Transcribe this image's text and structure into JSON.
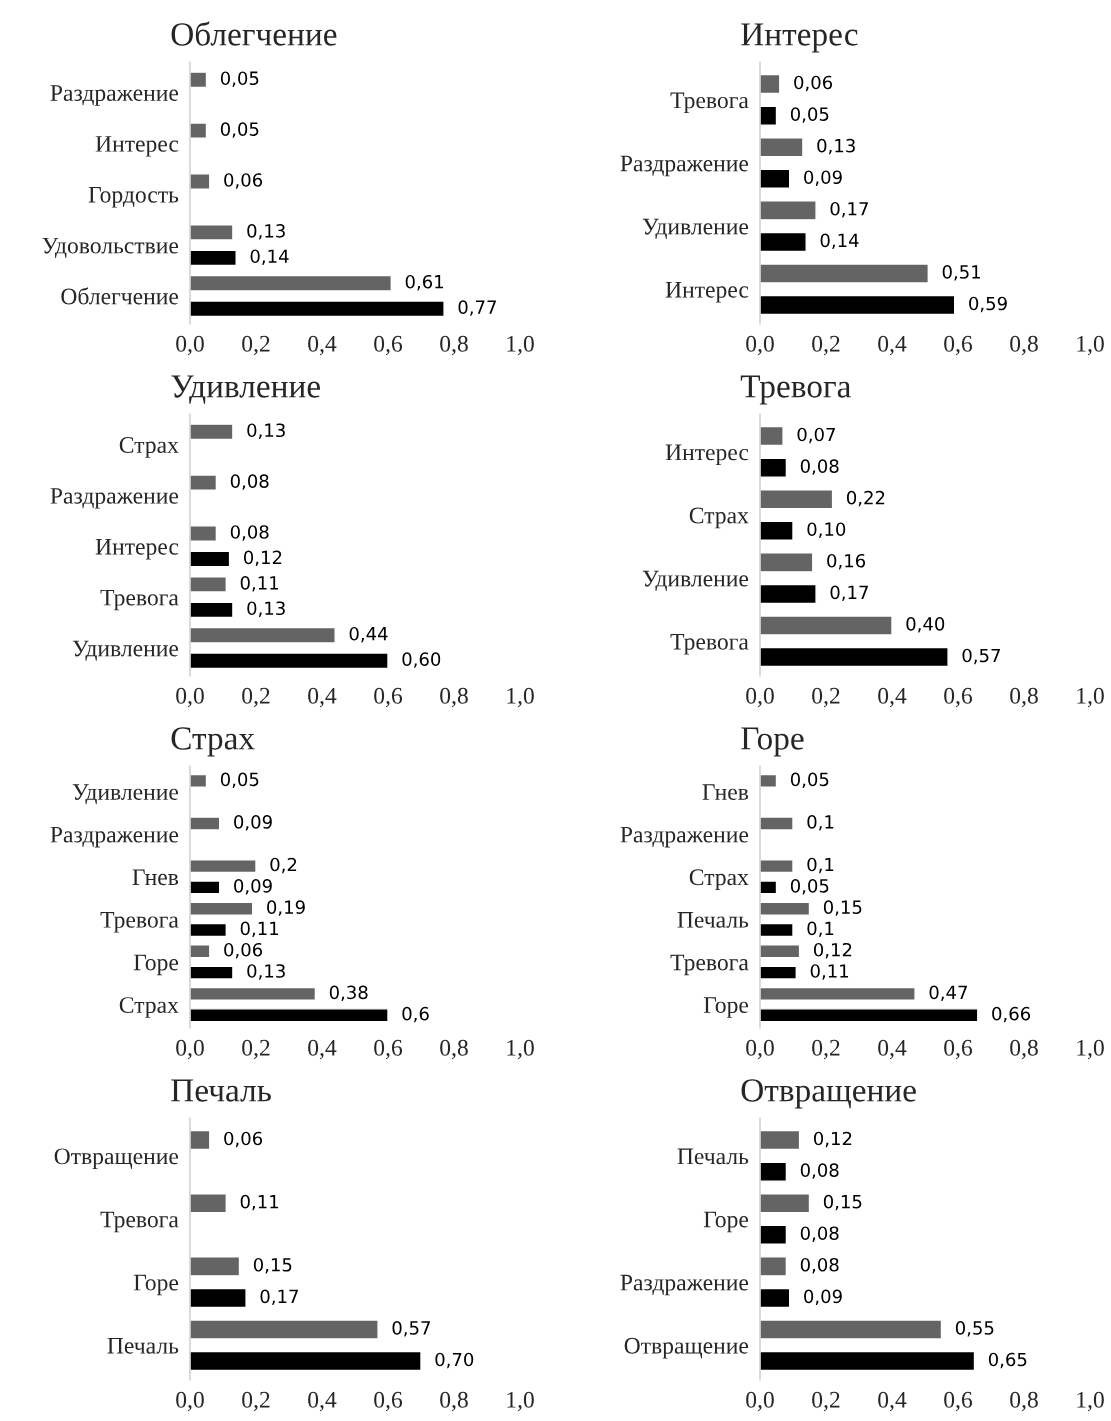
{
  "chart_data": [
    {
      "type": "bar",
      "orientation": "horizontal",
      "title": "Облегчение",
      "categories": [
        "Раздражение",
        "Интерес",
        "Гордость",
        "Удовольствие",
        "Облегчение"
      ],
      "series": [
        {
          "color": "#646464",
          "values": [
            0.05,
            0.05,
            0.06,
            0.13,
            0.61
          ],
          "value_labels": [
            "0,05",
            "0,05",
            "0,06",
            "0,13",
            "0,61"
          ]
        },
        {
          "color": "#000000",
          "values": [
            null,
            null,
            null,
            0.14,
            0.77
          ],
          "value_labels": [
            null,
            null,
            null,
            "0,14",
            "0,77"
          ]
        }
      ],
      "xlim": [
        0,
        1.0
      ],
      "xticks": [
        {
          "value": 0,
          "label": "0,0"
        },
        {
          "value": 0.2,
          "label": "0,2"
        },
        {
          "value": 0.4,
          "label": "0,4"
        },
        {
          "value": 0.6,
          "label": "0,6"
        },
        {
          "value": 0.8,
          "label": "0,8"
        },
        {
          "value": 1.0,
          "label": "1,0"
        }
      ],
      "grid": false
    },
    {
      "type": "bar",
      "orientation": "horizontal",
      "title": "Интерес",
      "categories": [
        "Тревога",
        "Раздражение",
        "Удивление",
        "Интерес"
      ],
      "series": [
        {
          "color": "#646464",
          "values": [
            0.06,
            0.13,
            0.17,
            0.51
          ],
          "value_labels": [
            "0,06",
            "0,13",
            "0,17",
            "0,51"
          ]
        },
        {
          "color": "#000000",
          "values": [
            0.05,
            0.09,
            0.14,
            0.59
          ],
          "value_labels": [
            "0,05",
            "0,09",
            "0,14",
            "0,59"
          ]
        }
      ],
      "xlim": [
        0,
        1.0
      ],
      "xticks": [
        {
          "value": 0,
          "label": "0,0"
        },
        {
          "value": 0.2,
          "label": "0,2"
        },
        {
          "value": 0.4,
          "label": "0,4"
        },
        {
          "value": 0.6,
          "label": "0,6"
        },
        {
          "value": 0.8,
          "label": "0,8"
        },
        {
          "value": 1.0,
          "label": "1,0"
        }
      ],
      "grid": false
    },
    {
      "type": "bar",
      "orientation": "horizontal",
      "title": "Удивление",
      "categories": [
        "Страх",
        "Раздражение",
        "Интерес",
        "Тревога",
        "Удивление"
      ],
      "series": [
        {
          "color": "#646464",
          "values": [
            0.13,
            0.08,
            0.08,
            0.11,
            0.44
          ],
          "value_labels": [
            "0,13",
            "0,08",
            "0,08",
            "0,11",
            "0,44"
          ]
        },
        {
          "color": "#000000",
          "values": [
            null,
            null,
            0.12,
            0.13,
            0.6
          ],
          "value_labels": [
            null,
            null,
            "0,12",
            "0,13",
            "0,60"
          ]
        }
      ],
      "xlim": [
        0,
        1.0
      ],
      "xticks": [
        {
          "value": 0,
          "label": "0,0"
        },
        {
          "value": 0.2,
          "label": "0,2"
        },
        {
          "value": 0.4,
          "label": "0,4"
        },
        {
          "value": 0.6,
          "label": "0,6"
        },
        {
          "value": 0.8,
          "label": "0,8"
        },
        {
          "value": 1.0,
          "label": "1,0"
        }
      ],
      "grid": false
    },
    {
      "type": "bar",
      "orientation": "horizontal",
      "title": "Тревога",
      "categories": [
        "Интерес",
        "Страх",
        "Удивление",
        "Тревога"
      ],
      "series": [
        {
          "color": "#646464",
          "values": [
            0.07,
            0.22,
            0.16,
            0.4
          ],
          "value_labels": [
            "0,07",
            "0,22",
            "0,16",
            "0,40"
          ]
        },
        {
          "color": "#000000",
          "values": [
            0.08,
            0.1,
            0.17,
            0.57
          ],
          "value_labels": [
            "0,08",
            "0,10",
            "0,17",
            "0,57"
          ]
        }
      ],
      "xlim": [
        0,
        1.0
      ],
      "xticks": [
        {
          "value": 0,
          "label": "0,0"
        },
        {
          "value": 0.2,
          "label": "0,2"
        },
        {
          "value": 0.4,
          "label": "0,4"
        },
        {
          "value": 0.6,
          "label": "0,6"
        },
        {
          "value": 0.8,
          "label": "0,8"
        },
        {
          "value": 1.0,
          "label": "1,0"
        }
      ],
      "grid": false
    },
    {
      "type": "bar",
      "orientation": "horizontal",
      "title": "Страх",
      "categories": [
        "Удивление",
        "Раздражение",
        "Гнев",
        "Тревога",
        "Горе",
        "Страх"
      ],
      "series": [
        {
          "color": "#646464",
          "values": [
            0.05,
            0.09,
            0.2,
            0.19,
            0.06,
            0.38
          ],
          "value_labels": [
            "0,05",
            "0,09",
            "0,2",
            "0,19",
            "0,06",
            "0,38"
          ]
        },
        {
          "color": "#000000",
          "values": [
            null,
            null,
            0.09,
            0.11,
            0.13,
            0.6
          ],
          "value_labels": [
            null,
            null,
            "0,09",
            "0,11",
            "0,13",
            "0,6"
          ]
        }
      ],
      "xlim": [
        0,
        1.0
      ],
      "xticks": [
        {
          "value": 0,
          "label": "0,0"
        },
        {
          "value": 0.2,
          "label": "0,2"
        },
        {
          "value": 0.4,
          "label": "0,4"
        },
        {
          "value": 0.6,
          "label": "0,6"
        },
        {
          "value": 0.8,
          "label": "0,8"
        },
        {
          "value": 1.0,
          "label": "1,0"
        }
      ],
      "grid": false
    },
    {
      "type": "bar",
      "orientation": "horizontal",
      "title": "Горе",
      "categories": [
        "Гнев",
        "Раздражение",
        "Страх",
        "Печаль",
        "Тревога",
        "Горе"
      ],
      "series": [
        {
          "color": "#646464",
          "values": [
            0.05,
            0.1,
            0.1,
            0.15,
            0.12,
            0.47
          ],
          "value_labels": [
            "0,05",
            "0,1",
            "0,1",
            "0,15",
            "0,12",
            "0,47"
          ]
        },
        {
          "color": "#000000",
          "values": [
            null,
            null,
            0.05,
            0.1,
            0.11,
            0.66
          ],
          "value_labels": [
            null,
            null,
            "0,05",
            "0,1",
            "0,11",
            "0,66"
          ]
        }
      ],
      "xlim": [
        0,
        1.0
      ],
      "xticks": [
        {
          "value": 0,
          "label": "0,0"
        },
        {
          "value": 0.2,
          "label": "0,2"
        },
        {
          "value": 0.4,
          "label": "0,4"
        },
        {
          "value": 0.6,
          "label": "0,6"
        },
        {
          "value": 0.8,
          "label": "0,8"
        },
        {
          "value": 1.0,
          "label": "1,0"
        }
      ],
      "grid": false
    },
    {
      "type": "bar",
      "orientation": "horizontal",
      "title": "Печаль",
      "categories": [
        "Отвращение",
        "Тревога",
        "Горе",
        "Печаль"
      ],
      "series": [
        {
          "color": "#646464",
          "values": [
            0.06,
            0.11,
            0.15,
            0.57
          ],
          "value_labels": [
            "0,06",
            "0,11",
            "0,15",
            "0,57"
          ]
        },
        {
          "color": "#000000",
          "values": [
            null,
            null,
            0.17,
            0.7
          ],
          "value_labels": [
            null,
            null,
            "0,17",
            "0,70"
          ]
        }
      ],
      "xlim": [
        0,
        1.0
      ],
      "xticks": [
        {
          "value": 0,
          "label": "0,0"
        },
        {
          "value": 0.2,
          "label": "0,2"
        },
        {
          "value": 0.4,
          "label": "0,4"
        },
        {
          "value": 0.6,
          "label": "0,6"
        },
        {
          "value": 0.8,
          "label": "0,8"
        },
        {
          "value": 1.0,
          "label": "1,0"
        }
      ],
      "grid": false
    },
    {
      "type": "bar",
      "orientation": "horizontal",
      "title": "Отвращение",
      "categories": [
        "Печаль",
        "Горе",
        "Раздражение",
        "Отвращение"
      ],
      "series": [
        {
          "color": "#646464",
          "values": [
            0.12,
            0.15,
            0.08,
            0.55
          ],
          "value_labels": [
            "0,12",
            "0,15",
            "0,08",
            "0,55"
          ]
        },
        {
          "color": "#000000",
          "values": [
            0.08,
            0.08,
            0.09,
            0.65
          ],
          "value_labels": [
            "0,08",
            "0,08",
            "0,09",
            "0,65"
          ]
        }
      ],
      "xlim": [
        0,
        1.0
      ],
      "xticks": [
        {
          "value": 0,
          "label": "0,0"
        },
        {
          "value": 0.2,
          "label": "0,2"
        },
        {
          "value": 0.4,
          "label": "0,4"
        },
        {
          "value": 0.6,
          "label": "0,6"
        },
        {
          "value": 0.8,
          "label": "0,8"
        },
        {
          "value": 1.0,
          "label": "1,0"
        }
      ],
      "grid": false
    }
  ]
}
